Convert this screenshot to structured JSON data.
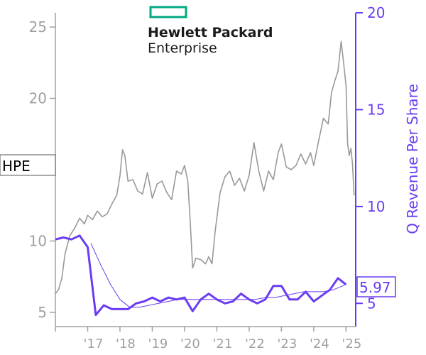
{
  "ticker": "HPE",
  "logo": {
    "line1": "Hewlett Packard",
    "line2": "Enterprise",
    "accent_color": "#01a982"
  },
  "colors": {
    "price": "#999999",
    "revenue": "#6a3df2",
    "axis_left": "#a0a0a0",
    "axis_right": "#6a3df2"
  },
  "chart_data": {
    "type": "line",
    "xlabel": "",
    "x_ticks": [
      "'17",
      "'18",
      "'19",
      "'20",
      "'21",
      "'22",
      "'23",
      "'24",
      "'25"
    ],
    "x_tick_years": [
      2017,
      2018,
      2019,
      2020,
      2021,
      2022,
      2023,
      2024,
      2025
    ],
    "xlim": [
      2016.0,
      2025.3
    ],
    "left_axis": {
      "label": "",
      "ylim": [
        4,
        26
      ],
      "ticks": [
        5,
        10,
        20,
        25
      ]
    },
    "right_axis": {
      "label": "Q Revenue Per Share",
      "ylim": [
        3.8,
        20.0
      ],
      "ticks": [
        5,
        10,
        15,
        20
      ]
    },
    "last_value_label": "5.97",
    "series": [
      {
        "name": "",
        "axis": "left",
        "style": "price",
        "x": [
          2016.0,
          2016.1,
          2016.2,
          2016.3,
          2016.45,
          2016.6,
          2016.75,
          2016.9,
          2017.0,
          2017.15,
          2017.3,
          2017.45,
          2017.6,
          2017.75,
          2017.9,
          2018.0,
          2018.08,
          2018.15,
          2018.25,
          2018.4,
          2018.55,
          2018.7,
          2018.85,
          2019.0,
          2019.15,
          2019.3,
          2019.45,
          2019.6,
          2019.75,
          2019.9,
          2020.0,
          2020.1,
          2020.18,
          2020.25,
          2020.35,
          2020.5,
          2020.65,
          2020.75,
          2020.85,
          2020.95,
          2021.1,
          2021.25,
          2021.4,
          2021.55,
          2021.7,
          2021.85,
          2022.0,
          2022.15,
          2022.3,
          2022.45,
          2022.6,
          2022.75,
          2022.9,
          2023.0,
          2023.15,
          2023.3,
          2023.45,
          2023.6,
          2023.75,
          2023.9,
          2024.0,
          2024.15,
          2024.3,
          2024.45,
          2024.55,
          2024.65,
          2024.75,
          2024.85,
          2024.92,
          2025.0,
          2025.05,
          2025.1,
          2025.15,
          2025.2,
          2025.25
        ],
        "y": [
          6.3,
          6.6,
          7.4,
          9.1,
          10.4,
          10.9,
          11.6,
          11.2,
          11.8,
          11.5,
          12.1,
          11.7,
          11.9,
          12.6,
          13.2,
          14.6,
          16.4,
          16.0,
          14.2,
          14.3,
          13.5,
          13.3,
          14.8,
          13.0,
          14.0,
          14.2,
          13.4,
          12.9,
          14.9,
          14.7,
          15.3,
          14.2,
          11.2,
          8.1,
          8.8,
          8.7,
          8.4,
          8.9,
          8.4,
          10.7,
          13.4,
          14.5,
          14.9,
          13.9,
          14.4,
          13.5,
          14.6,
          16.9,
          14.9,
          13.5,
          14.9,
          14.3,
          16.2,
          16.8,
          15.2,
          15.0,
          15.3,
          16.1,
          15.4,
          16.2,
          15.3,
          17.0,
          18.6,
          18.2,
          20.4,
          21.2,
          21.9,
          24.0,
          22.6,
          20.9,
          16.8,
          16.0,
          16.5,
          15.4,
          13.2
        ]
      },
      {
        "name": "",
        "axis": "right",
        "style": "revenue",
        "x": [
          2016.0,
          2016.25,
          2016.5,
          2016.75,
          2017.0,
          2017.25,
          2017.5,
          2017.75,
          2018.0,
          2018.25,
          2018.5,
          2018.75,
          2019.0,
          2019.25,
          2019.5,
          2019.75,
          2020.0,
          2020.25,
          2020.5,
          2020.75,
          2021.0,
          2021.25,
          2021.5,
          2021.75,
          2022.0,
          2022.25,
          2022.5,
          2022.75,
          2023.0,
          2023.25,
          2023.5,
          2023.75,
          2024.0,
          2024.25,
          2024.5,
          2024.75,
          2025.0
        ],
        "y": [
          8.3,
          8.4,
          8.3,
          8.5,
          7.9,
          4.4,
          4.9,
          4.7,
          4.7,
          4.7,
          5.0,
          5.1,
          5.3,
          5.1,
          5.3,
          5.2,
          5.3,
          4.6,
          5.2,
          5.5,
          5.2,
          5.0,
          5.1,
          5.5,
          5.2,
          5.0,
          5.2,
          5.9,
          5.9,
          5.2,
          5.2,
          5.6,
          5.1,
          5.4,
          5.7,
          6.3,
          5.97
        ]
      },
      {
        "name": "",
        "axis": "right",
        "style": "trend",
        "x": [
          2017.1,
          2017.4,
          2017.7,
          2018.0,
          2018.3,
          2018.6,
          2018.9,
          2019.2,
          2019.5,
          2019.8,
          2020.1,
          2020.4,
          2020.7,
          2021.0,
          2021.3,
          2021.6,
          2021.9,
          2022.2,
          2022.5,
          2022.8,
          2023.1,
          2023.4,
          2023.7,
          2024.0,
          2024.3,
          2024.6,
          2024.9,
          2025.0
        ],
        "y": [
          8.1,
          7.0,
          6.0,
          5.2,
          4.8,
          4.8,
          4.9,
          5.0,
          5.1,
          5.2,
          5.2,
          5.2,
          5.2,
          5.2,
          5.2,
          5.2,
          5.2,
          5.2,
          5.3,
          5.3,
          5.4,
          5.5,
          5.6,
          5.6,
          5.6,
          5.7,
          5.9,
          6.0
        ]
      }
    ]
  }
}
